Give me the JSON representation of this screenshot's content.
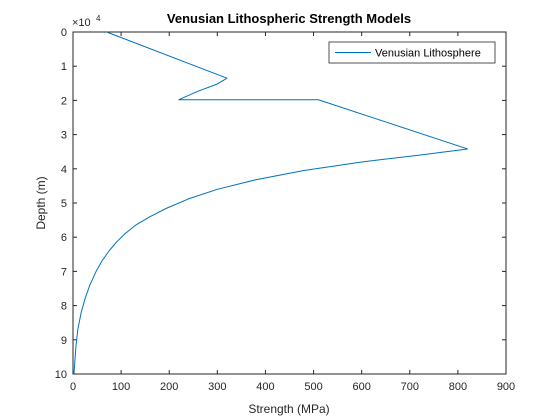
{
  "chart_data": {
    "type": "line",
    "title": "Venusian Lithospheric Strength Models",
    "xlabel": "Strength (MPa)",
    "ylabel": "Depth (m)",
    "xlim": [
      0,
      900
    ],
    "ylim": [
      0,
      100000
    ],
    "y_reversed": true,
    "y_exponent_label": "×10",
    "y_exponent_power": "4",
    "xticks": [
      0,
      100,
      200,
      300,
      400,
      500,
      600,
      700,
      800,
      900
    ],
    "xtick_labels": [
      "0",
      "100",
      "200",
      "300",
      "400",
      "500",
      "600",
      "700",
      "800",
      "900"
    ],
    "yticks": [
      0,
      10000,
      20000,
      30000,
      40000,
      50000,
      60000,
      70000,
      80000,
      90000,
      100000
    ],
    "ytick_labels": [
      "0",
      "1",
      "2",
      "3",
      "4",
      "5",
      "6",
      "7",
      "8",
      "9",
      "10"
    ],
    "grid": false,
    "legend_location": "top-right",
    "series": [
      {
        "name": "Venusian Lithosphere",
        "color": "#0072BD",
        "x": [
          70,
          320,
          300,
          260,
          220,
          510,
          820,
          720,
          600,
          480,
          380,
          300,
          240,
          195,
          160,
          130,
          108,
          90,
          75,
          60,
          48,
          35,
          25,
          17,
          10,
          6,
          2
        ],
        "y": [
          0,
          13500,
          15200,
          17300,
          19800,
          19800,
          34200,
          36000,
          38000,
          40500,
          43200,
          46000,
          48800,
          51500,
          54000,
          56500,
          59000,
          61500,
          64000,
          67000,
          70000,
          74000,
          78000,
          82000,
          87000,
          92000,
          100000
        ]
      }
    ]
  }
}
